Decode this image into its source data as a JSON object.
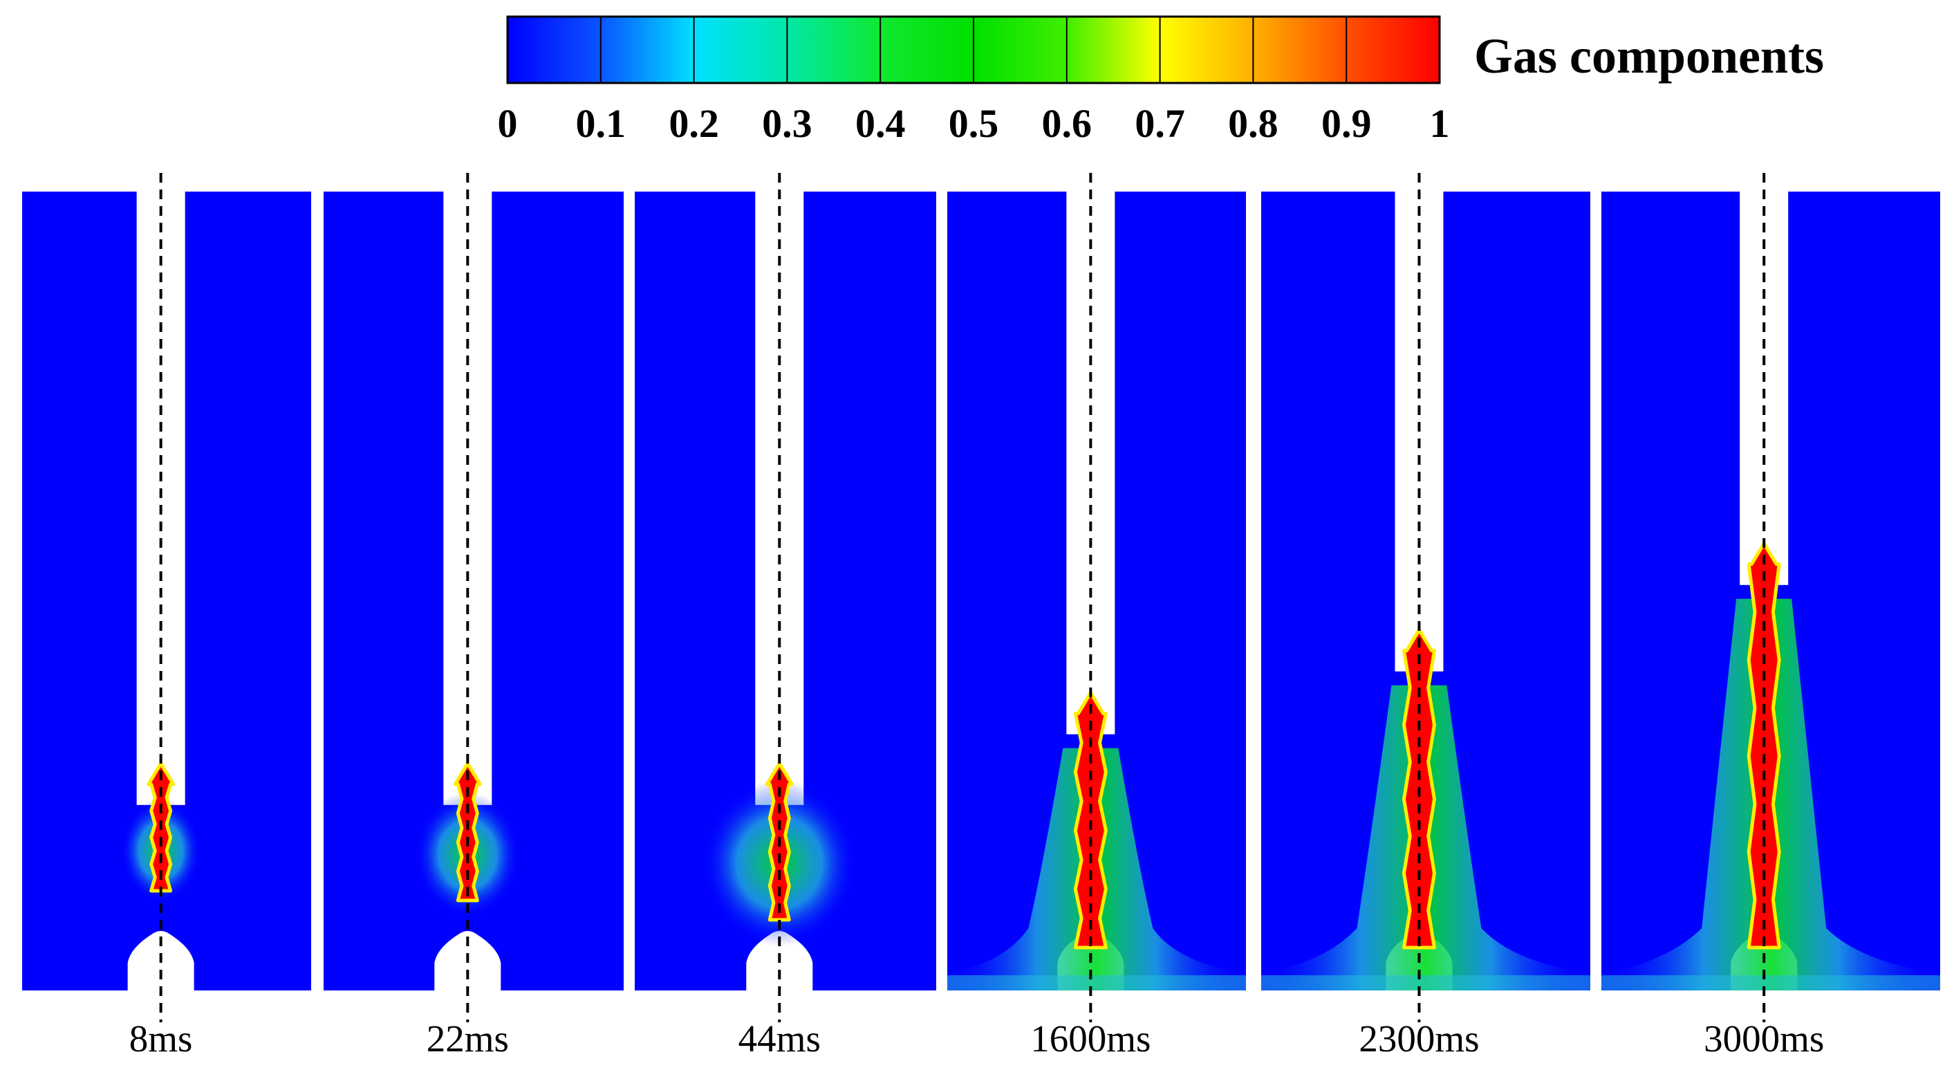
{
  "colorbar": {
    "title": "Gas components",
    "ticks": [
      "0",
      "0.1",
      "0.2",
      "0.3",
      "0.4",
      "0.5",
      "0.6",
      "0.7",
      "0.8",
      "0.9",
      "1"
    ],
    "colors": [
      "#0000ff",
      "#0a55ff",
      "#00e0ff",
      "#00e8a8",
      "#10e830",
      "#00e000",
      "#40ee00",
      "#ffff00",
      "#ffb000",
      "#ff5000",
      "#ff0000"
    ]
  },
  "colors": {
    "liquid": "#0000ff",
    "gas": "#ff0000",
    "gas_edge": "#ffee00",
    "mix_green": "#00dd22",
    "mix_cyan": "#22bbdd",
    "background": "#ffffff"
  },
  "panels": [
    {
      "label": "8ms",
      "nozzle_depth": 0.12,
      "plume_spread": 0.1
    },
    {
      "label": "22ms",
      "nozzle_depth": 0.12,
      "plume_spread": 0.2
    },
    {
      "label": "44ms",
      "nozzle_depth": 0.12,
      "plume_spread": 0.4
    },
    {
      "label": "1600ms",
      "nozzle_depth": 0.3,
      "plume_spread": 1.0
    },
    {
      "label": "2300ms",
      "nozzle_depth": 0.46,
      "plume_spread": 1.0
    },
    {
      "label": "3000ms",
      "nozzle_depth": 0.68,
      "plume_spread": 0.9
    }
  ]
}
